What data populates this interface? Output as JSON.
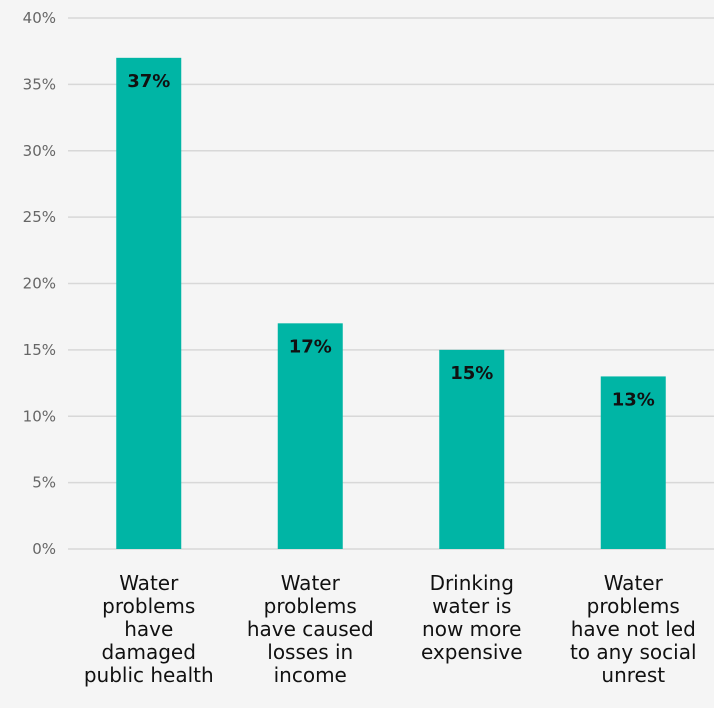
{
  "chart_data": {
    "type": "bar",
    "categories": [
      [
        "Water",
        "problems",
        "have",
        "damaged",
        "public health"
      ],
      [
        "Water",
        "problems",
        "have caused",
        "losses in",
        "income"
      ],
      [
        "Drinking",
        "water is",
        "now more",
        "expensive"
      ],
      [
        "Water",
        "problems",
        "have not led",
        "to any social",
        "unrest"
      ]
    ],
    "values": [
      37,
      17,
      15,
      13
    ],
    "data_labels": [
      "37%",
      "17%",
      "15%",
      "13%"
    ],
    "yticks": [
      "0%",
      "5%",
      "10%",
      "15%",
      "20%",
      "25%",
      "30%",
      "35%",
      "40%"
    ],
    "ylim": [
      0,
      40
    ],
    "grid": true,
    "title": "",
    "xlabel": "",
    "ylabel": "",
    "colors": {
      "bar": "#00b5a5",
      "grid": "#d8d8d8",
      "background": "#f5f5f5"
    }
  }
}
